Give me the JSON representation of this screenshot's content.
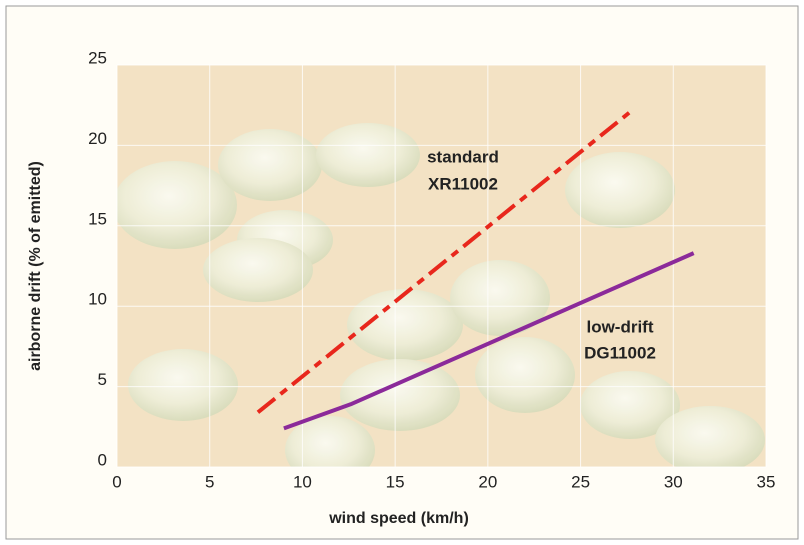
{
  "chart_data": {
    "type": "line",
    "xlabel": "wind speed (km/h)",
    "ylabel": "airborne drift (% of emitted)",
    "xlim": [
      0,
      35
    ],
    "xticks": [
      0,
      5,
      10,
      15,
      20,
      25,
      30,
      35
    ],
    "ylim": [
      0,
      25
    ],
    "yticks": [
      0,
      5,
      10,
      15,
      20,
      25
    ],
    "grid": true,
    "series": [
      {
        "name": "standard XR11002",
        "color": "#e8271c",
        "dash": true,
        "x": [
          7.6,
          27.8
        ],
        "values": [
          3.4,
          22.2
        ]
      },
      {
        "name": "low-drift DG11002",
        "color": "#8b2a9a",
        "dash": false,
        "x": [
          9,
          12.6,
          31.1
        ],
        "values": [
          2.4,
          3.9,
          13.3
        ]
      }
    ],
    "annotations": [
      "standard",
      "XR11002",
      "low-drift",
      "DG11002"
    ]
  }
}
